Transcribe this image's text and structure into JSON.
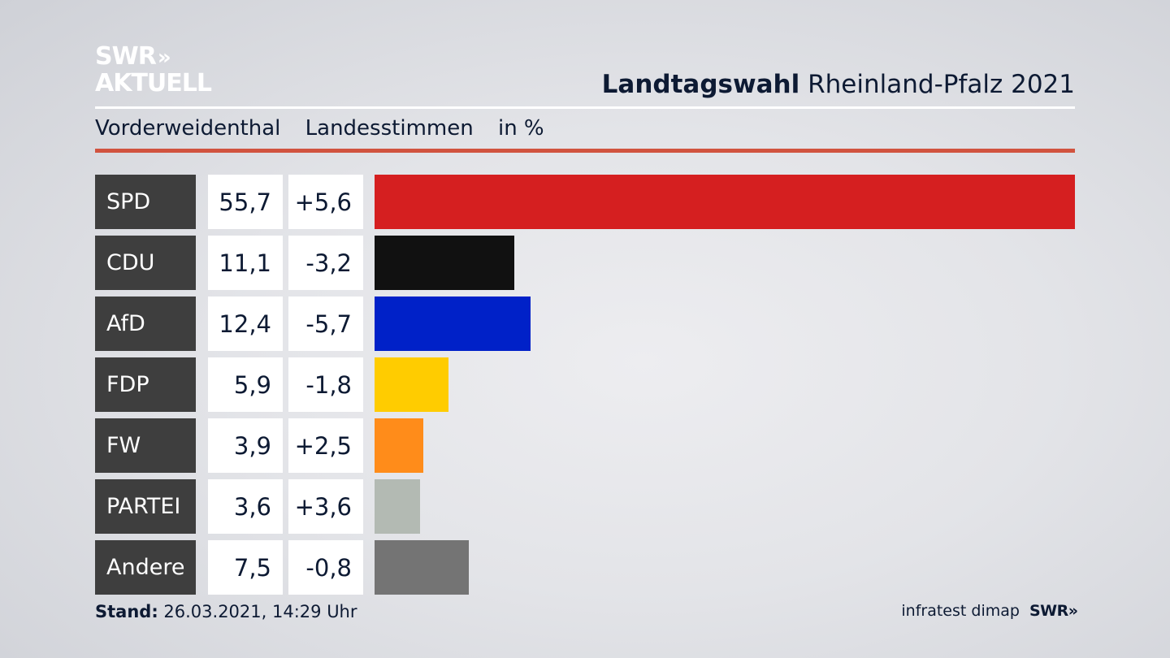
{
  "logo": {
    "line1": "SWR",
    "chevrons": "»",
    "line2": "AKTUELL"
  },
  "header": {
    "title_bold": "Landtagswahl",
    "title_rest": "Rheinland-Pfalz 2021"
  },
  "subheader": {
    "location": "Vorderweidenthal",
    "measure": "Landesstimmen",
    "unit": "in %"
  },
  "chart_data": {
    "type": "bar",
    "orientation": "horizontal",
    "title": "Landtagswahl Rheinland-Pfalz 2021",
    "subtitle": "Vorderweidenthal Landesstimmen in %",
    "categories": [
      "SPD",
      "CDU",
      "AfD",
      "FDP",
      "FW",
      "PARTEI",
      "Andere"
    ],
    "values": [
      55.7,
      11.1,
      12.4,
      5.9,
      3.9,
      3.6,
      7.5
    ],
    "value_labels": [
      "55,7",
      "11,1",
      "12,4",
      "5,9",
      "3,9",
      "3,6",
      "7,5"
    ],
    "change_labels": [
      "+5,6",
      "-3,2",
      "-5,7",
      "-1,8",
      "+2,5",
      "+3,6",
      "-0,8"
    ],
    "changes": [
      5.6,
      -3.2,
      -5.7,
      -1.8,
      2.5,
      3.6,
      -0.8
    ],
    "colors": [
      "#d51f20",
      "#111111",
      "#0021c8",
      "#ffcc00",
      "#ff8c1a",
      "#b3bab3",
      "#747474"
    ],
    "xlim": [
      0,
      55.7
    ],
    "grid": false,
    "legend": "none"
  },
  "footer": {
    "stand_label": "Stand:",
    "stand_value": "26.03.2021, 14:29 Uhr",
    "source": "infratest dimap",
    "brand": "SWR",
    "brand_chevrons": "»"
  }
}
